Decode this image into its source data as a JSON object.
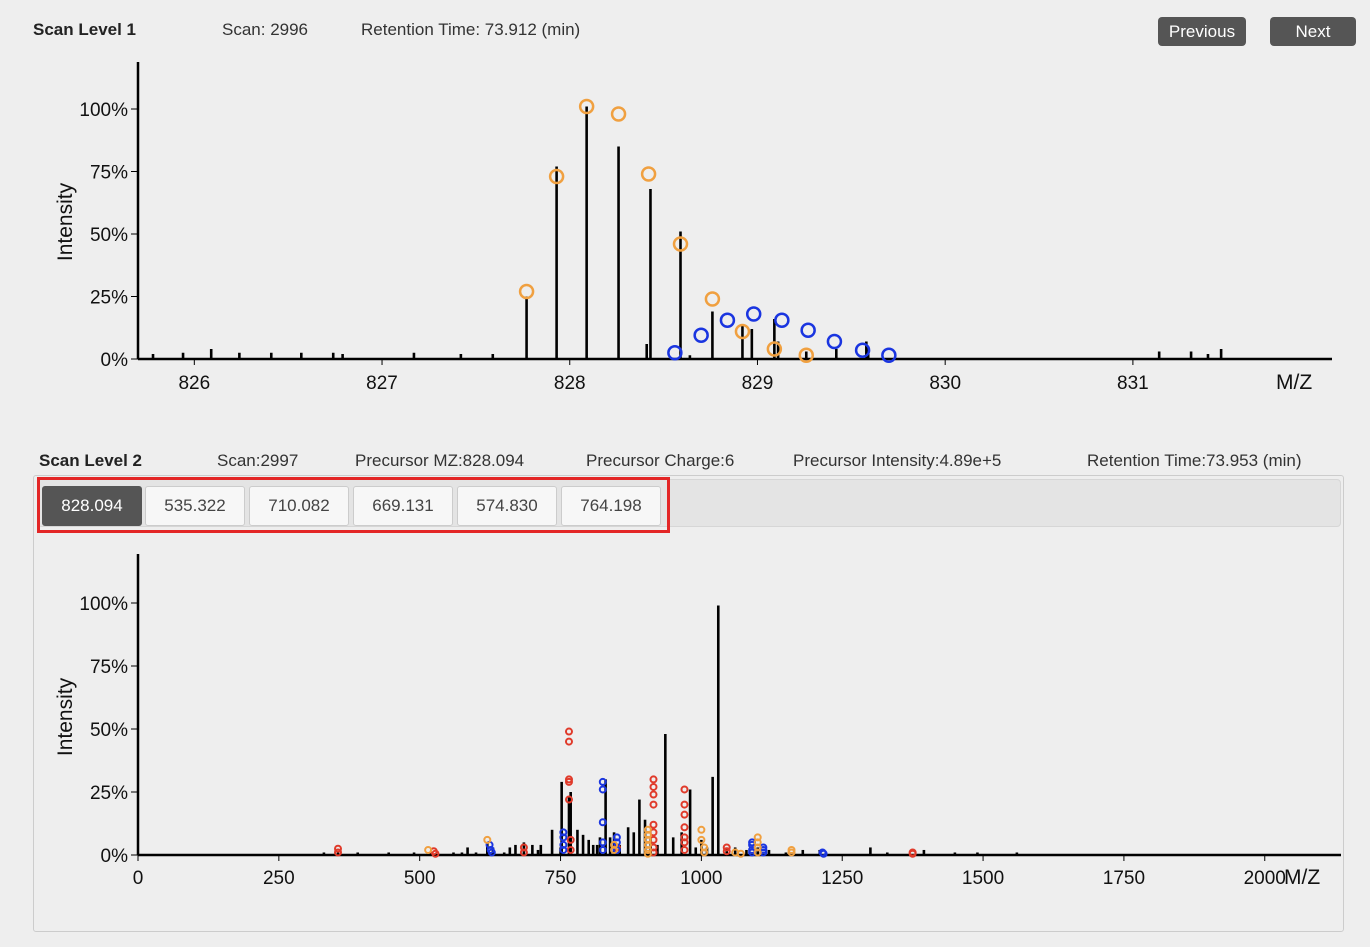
{
  "scan1": {
    "title": "Scan Level 1",
    "scan": "Scan: 2996",
    "retention": "Retention Time: 73.912 (min)",
    "previous_label": "Previous",
    "next_label": "Next"
  },
  "scan2": {
    "title": "Scan Level 2",
    "scan": "Scan:2997",
    "precursor_mz": "Precursor MZ:828.094",
    "precursor_charge": "Precursor Charge:6",
    "precursor_intensity": "Precursor Intensity:4.89e+5",
    "retention": "Retention Time:73.953 (min)",
    "tabs": [
      {
        "label": "828.094",
        "active": true
      },
      {
        "label": "535.322",
        "active": false
      },
      {
        "label": "710.082",
        "active": false
      },
      {
        "label": "669.131",
        "active": false
      },
      {
        "label": "574.830",
        "active": false
      },
      {
        "label": "764.198",
        "active": false
      }
    ]
  },
  "colors": {
    "orange": "#f0a040",
    "blue": "#1a35e0",
    "red": "#e03a2a",
    "button": "#555555",
    "highlight": "#e32626"
  },
  "chart_data": [
    {
      "type": "bar",
      "xlabel": "M/Z",
      "ylabel": "Intensity",
      "xlim": [
        825.7,
        832.05
      ],
      "ylim": [
        0,
        120
      ],
      "xticks": [
        826,
        827,
        828,
        829,
        830,
        831
      ],
      "xtick_labels": [
        "826",
        "827",
        "828",
        "829",
        "830",
        "831"
      ],
      "yticks": [
        0,
        25,
        50,
        75,
        100
      ],
      "ytick_labels": [
        "0%",
        "25%",
        "50%",
        "75%",
        "100%"
      ],
      "peaks": [
        [
          825.78,
          2
        ],
        [
          825.94,
          2.5
        ],
        [
          826.09,
          4
        ],
        [
          826.24,
          2.5
        ],
        [
          826.41,
          2.5
        ],
        [
          826.57,
          2.5
        ],
        [
          826.74,
          2.5
        ],
        [
          826.79,
          2
        ],
        [
          827.17,
          2.5
        ],
        [
          827.42,
          2
        ],
        [
          827.59,
          2
        ],
        [
          827.77,
          25
        ],
        [
          827.93,
          77
        ],
        [
          828.09,
          101
        ],
        [
          828.26,
          85
        ],
        [
          828.41,
          6
        ],
        [
          828.43,
          68
        ],
        [
          828.59,
          51
        ],
        [
          828.64,
          1.5
        ],
        [
          828.76,
          19
        ],
        [
          828.92,
          14
        ],
        [
          828.97,
          12
        ],
        [
          829.09,
          16
        ],
        [
          829.11,
          7
        ],
        [
          829.26,
          3
        ],
        [
          829.42,
          4
        ],
        [
          829.58,
          7
        ],
        [
          829.59,
          5
        ],
        [
          831.14,
          3
        ],
        [
          831.31,
          3
        ],
        [
          831.4,
          2
        ],
        [
          831.47,
          4
        ]
      ],
      "envelopes": [
        {
          "name": "orange",
          "color": "#f0a040",
          "points": [
            [
              827.77,
              27
            ],
            [
              827.93,
              73
            ],
            [
              828.09,
              101
            ],
            [
              828.26,
              98
            ],
            [
              828.42,
              74
            ],
            [
              828.59,
              46
            ],
            [
              828.76,
              24
            ],
            [
              828.92,
              11
            ],
            [
              829.09,
              4
            ],
            [
              829.26,
              1.5
            ]
          ]
        },
        {
          "name": "blue",
          "color": "#1a35e0",
          "points": [
            [
              828.56,
              2.5
            ],
            [
              828.7,
              9.5
            ],
            [
              828.84,
              15.5
            ],
            [
              828.98,
              18
            ],
            [
              829.13,
              15.5
            ],
            [
              829.27,
              11.5
            ],
            [
              829.41,
              7
            ],
            [
              829.56,
              3.5
            ],
            [
              829.7,
              1.5
            ]
          ]
        }
      ]
    },
    {
      "type": "bar",
      "xlabel": "M/Z",
      "ylabel": "Intensity",
      "xlim": [
        0,
        2130
      ],
      "ylim": [
        0,
        120
      ],
      "xticks": [
        0,
        250,
        500,
        750,
        1000,
        1250,
        1500,
        1750,
        2000
      ],
      "xtick_labels": [
        "0",
        "250",
        "500",
        "750",
        "1000",
        "1250",
        "1500",
        "1750",
        "2000"
      ],
      "yticks": [
        0,
        25,
        50,
        75,
        100
      ],
      "ytick_labels": [
        "0%",
        "25%",
        "50%",
        "75%",
        "100%"
      ],
      "peaks": [
        [
          330,
          1
        ],
        [
          355,
          1
        ],
        [
          390,
          1
        ],
        [
          445,
          1
        ],
        [
          490,
          1
        ],
        [
          520,
          1
        ],
        [
          560,
          1
        ],
        [
          575,
          1
        ],
        [
          585,
          3
        ],
        [
          600,
          1
        ],
        [
          620,
          5
        ],
        [
          630,
          3
        ],
        [
          650,
          1
        ],
        [
          660,
          3
        ],
        [
          670,
          4
        ],
        [
          685,
          5
        ],
        [
          700,
          4
        ],
        [
          710,
          2
        ],
        [
          715,
          4
        ],
        [
          735,
          10
        ],
        [
          750,
          3
        ],
        [
          752,
          29
        ],
        [
          765,
          23
        ],
        [
          768,
          25
        ],
        [
          780,
          10
        ],
        [
          790,
          8
        ],
        [
          800,
          6
        ],
        [
          808,
          4
        ],
        [
          815,
          4
        ],
        [
          820,
          7
        ],
        [
          830,
          30
        ],
        [
          838,
          7
        ],
        [
          845,
          9
        ],
        [
          855,
          4
        ],
        [
          870,
          11
        ],
        [
          880,
          9
        ],
        [
          890,
          22
        ],
        [
          900,
          14
        ],
        [
          910,
          7
        ],
        [
          922,
          4
        ],
        [
          936,
          48
        ],
        [
          950,
          7
        ],
        [
          965,
          9
        ],
        [
          980,
          26
        ],
        [
          990,
          3
        ],
        [
          1000,
          6
        ],
        [
          1010,
          3
        ],
        [
          1020,
          31
        ],
        [
          1030,
          99
        ],
        [
          1045,
          3
        ],
        [
          1060,
          3
        ],
        [
          1080,
          2
        ],
        [
          1100,
          3
        ],
        [
          1120,
          2
        ],
        [
          1150,
          1
        ],
        [
          1180,
          2
        ],
        [
          1210,
          2
        ],
        [
          1300,
          3
        ],
        [
          1330,
          1
        ],
        [
          1395,
          2
        ],
        [
          1450,
          1
        ],
        [
          1490,
          1
        ],
        [
          1560,
          1
        ]
      ],
      "markers": [
        {
          "name": "red",
          "color": "#e03a2a",
          "points": [
            [
              355,
              2.5
            ],
            [
              355,
              1
            ],
            [
              525,
              1.5
            ],
            [
              528,
              0.5
            ],
            [
              685,
              3
            ],
            [
              685,
              1
            ],
            [
              765,
              49
            ],
            [
              765,
              45
            ],
            [
              765,
              30
            ],
            [
              765,
              29
            ],
            [
              765,
              22
            ],
            [
              768,
              6
            ],
            [
              768,
              2
            ],
            [
              850,
              3
            ],
            [
              915,
              30
            ],
            [
              915,
              27
            ],
            [
              915,
              24
            ],
            [
              915,
              20
            ],
            [
              915,
              12
            ],
            [
              915,
              9
            ],
            [
              915,
              6
            ],
            [
              915,
              3
            ],
            [
              915,
              1
            ],
            [
              970,
              26
            ],
            [
              970,
              20
            ],
            [
              970,
              16
            ],
            [
              970,
              11
            ],
            [
              970,
              7
            ],
            [
              970,
              5
            ],
            [
              970,
              2
            ],
            [
              1045,
              3
            ],
            [
              1045,
              1.5
            ],
            [
              1375,
              1
            ],
            [
              1375,
              0.5
            ]
          ]
        },
        {
          "name": "blue",
          "color": "#1a35e0",
          "points": [
            [
              624,
              4
            ],
            [
              626,
              2
            ],
            [
              628,
              1
            ],
            [
              755,
              9
            ],
            [
              755,
              7
            ],
            [
              755,
              4
            ],
            [
              755,
              2
            ],
            [
              825,
              29
            ],
            [
              825,
              26
            ],
            [
              825,
              13
            ],
            [
              825,
              5
            ],
            [
              825,
              2
            ],
            [
              850,
              7
            ],
            [
              850,
              5
            ],
            [
              850,
              2
            ],
            [
              1090,
              5
            ],
            [
              1090,
              4
            ],
            [
              1090,
              2
            ],
            [
              1090,
              1
            ],
            [
              1110,
              3
            ],
            [
              1110,
              2
            ],
            [
              1110,
              1
            ],
            [
              1215,
              1
            ],
            [
              1217,
              0.5
            ]
          ]
        },
        {
          "name": "orange",
          "color": "#f0a040",
          "points": [
            [
              515,
              2
            ],
            [
              620,
              6
            ],
            [
              845,
              4
            ],
            [
              845,
              2
            ],
            [
              905,
              10
            ],
            [
              905,
              8
            ],
            [
              905,
              6
            ],
            [
              905,
              4
            ],
            [
              905,
              2
            ],
            [
              905,
              0.5
            ],
            [
              1000,
              10
            ],
            [
              1000,
              6
            ],
            [
              1005,
              3
            ],
            [
              1005,
              1
            ],
            [
              1060,
              1
            ],
            [
              1070,
              0.5
            ],
            [
              1100,
              7
            ],
            [
              1100,
              5
            ],
            [
              1100,
              3
            ],
            [
              1100,
              1
            ],
            [
              1160,
              2
            ],
            [
              1160,
              1
            ]
          ]
        }
      ]
    }
  ]
}
